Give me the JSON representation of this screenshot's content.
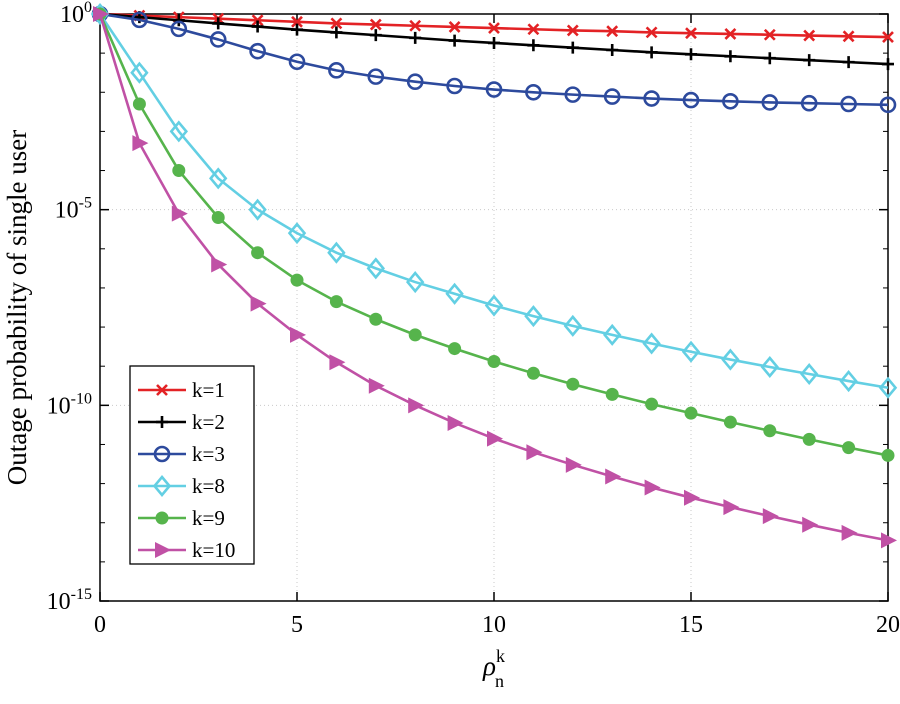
{
  "chart_data": {
    "type": "line",
    "title": "",
    "ylabel": "Outage probability of single user",
    "xlabel_symbol": "ρ",
    "xlabel_sub": "n",
    "xlabel_sup": "k",
    "xlim": [
      0,
      20
    ],
    "ylim_log10": [
      -15,
      0
    ],
    "x_ticks": [
      0,
      5,
      10,
      15,
      20
    ],
    "y_tick_base": "10",
    "y_major_exponents": [
      0,
      -5,
      -10,
      -15
    ],
    "grid": true,
    "legend_position": "lower-left-inside",
    "x": [
      0,
      1,
      2,
      3,
      4,
      5,
      6,
      7,
      8,
      9,
      10,
      11,
      12,
      13,
      14,
      15,
      16,
      17,
      18,
      19,
      20
    ],
    "series": [
      {
        "name": "k=1",
        "color": "#e32225",
        "marker": "x",
        "log10_values": [
          0,
          -0.04,
          -0.08,
          -0.12,
          -0.16,
          -0.2,
          -0.24,
          -0.27,
          -0.3,
          -0.33,
          -0.36,
          -0.39,
          -0.42,
          -0.44,
          -0.47,
          -0.49,
          -0.51,
          -0.53,
          -0.55,
          -0.57,
          -0.59
        ]
      },
      {
        "name": "k=2",
        "color": "#000000",
        "marker": "plus",
        "log10_values": [
          0,
          -0.08,
          -0.16,
          -0.24,
          -0.32,
          -0.4,
          -0.47,
          -0.54,
          -0.61,
          -0.68,
          -0.74,
          -0.8,
          -0.86,
          -0.92,
          -0.98,
          -1.03,
          -1.08,
          -1.13,
          -1.18,
          -1.23,
          -1.28
        ]
      },
      {
        "name": "k=3",
        "color": "#2d4a9d",
        "marker": "circle-open",
        "log10_values": [
          0,
          -0.15,
          -0.38,
          -0.65,
          -0.95,
          -1.22,
          -1.44,
          -1.6,
          -1.73,
          -1.84,
          -1.93,
          -2.0,
          -2.06,
          -2.11,
          -2.16,
          -2.2,
          -2.23,
          -2.26,
          -2.28,
          -2.3,
          -2.32
        ]
      },
      {
        "name": "k=8",
        "color": "#63cfe3",
        "marker": "diamond-open",
        "log10_values": [
          0,
          -1.5,
          -3.0,
          -4.2,
          -5.0,
          -5.6,
          -6.1,
          -6.5,
          -6.85,
          -7.15,
          -7.45,
          -7.72,
          -7.97,
          -8.2,
          -8.42,
          -8.63,
          -8.83,
          -9.02,
          -9.2,
          -9.38,
          -9.55
        ]
      },
      {
        "name": "k=9",
        "color": "#56b44c",
        "marker": "circle-filled",
        "log10_values": [
          0,
          -2.3,
          -4.0,
          -5.2,
          -6.1,
          -6.8,
          -7.35,
          -7.8,
          -8.2,
          -8.55,
          -8.88,
          -9.18,
          -9.46,
          -9.72,
          -9.97,
          -10.2,
          -10.43,
          -10.65,
          -10.87,
          -11.08,
          -11.28
        ]
      },
      {
        "name": "k=10",
        "color": "#c051a5",
        "marker": "triangle-right-filled",
        "log10_values": [
          0,
          -3.3,
          -5.1,
          -6.4,
          -7.4,
          -8.2,
          -8.9,
          -9.5,
          -10.0,
          -10.45,
          -10.85,
          -11.2,
          -11.52,
          -11.82,
          -12.1,
          -12.36,
          -12.6,
          -12.83,
          -13.05,
          -13.26,
          -13.45
        ]
      }
    ]
  }
}
